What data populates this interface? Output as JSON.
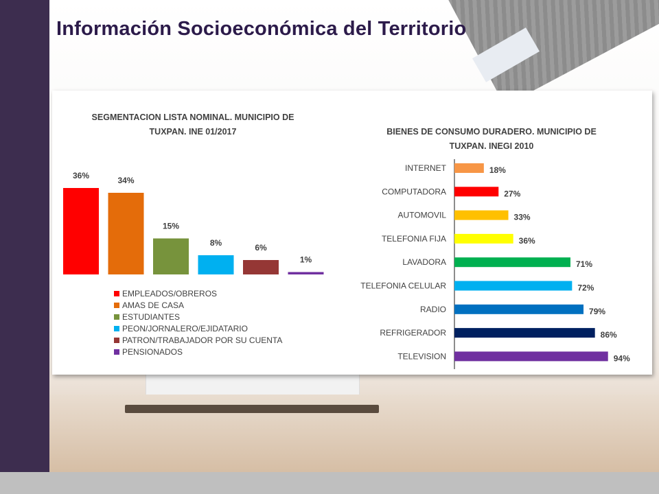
{
  "page": {
    "title": "Información Socioeconómica del Territorio"
  },
  "chart_data": [
    {
      "type": "bar",
      "title": "SEGMENTACION LISTA NOMINAL. MUNICIPIO DE TUXPAN. INE 01/2017",
      "title_lines": [
        "SEGMENTACION LISTA NOMINAL. MUNICIPIO DE",
        "TUXPAN. INE 01/2017"
      ],
      "categories": [
        "EMPLEADOS/OBREROS",
        "AMAS DE CASA",
        "ESTUDIANTES",
        "PEON/JORNALERO/EJIDATARIO",
        "PATRON/TRABAJADOR POR SU CUENTA",
        "PENSIONADOS"
      ],
      "values": [
        36,
        34,
        15,
        8,
        6,
        1
      ],
      "value_labels": [
        "36%",
        "34%",
        "15%",
        "8%",
        "6%",
        "1%"
      ],
      "colors": [
        "#ff0000",
        "#e46c0a",
        "#77933c",
        "#00b0f0",
        "#953735",
        "#7030a0"
      ],
      "ylim": [
        0,
        40
      ],
      "legend": "bottom-left",
      "grid": false
    },
    {
      "type": "bar",
      "orientation": "horizontal",
      "title": "BIENES DE CONSUMO DURADERO. MUNICIPIO DE TUXPAN. INEGI 2010",
      "title_lines": [
        "BIENES DE CONSUMO DURADERO. MUNICIPIO DE",
        "TUXPAN. INEGI 2010"
      ],
      "categories": [
        "INTERNET",
        "COMPUTADORA",
        "AUTOMOVIL",
        "TELEFONIA FIJA",
        "LAVADORA",
        "TELEFONIA CELULAR",
        "RADIO",
        "REFRIGERADOR",
        "TELEVISION"
      ],
      "values": [
        18,
        27,
        33,
        36,
        71,
        72,
        79,
        86,
        94
      ],
      "value_labels": [
        "18%",
        "27%",
        "33%",
        "36%",
        "71%",
        "72%",
        "79%",
        "86%",
        "94%"
      ],
      "colors": [
        "#f79646",
        "#ff0000",
        "#ffc000",
        "#ffff00",
        "#00b050",
        "#00b0f0",
        "#0070c0",
        "#002060",
        "#7030a0"
      ],
      "xlim": [
        0,
        100
      ],
      "grid": false
    }
  ]
}
